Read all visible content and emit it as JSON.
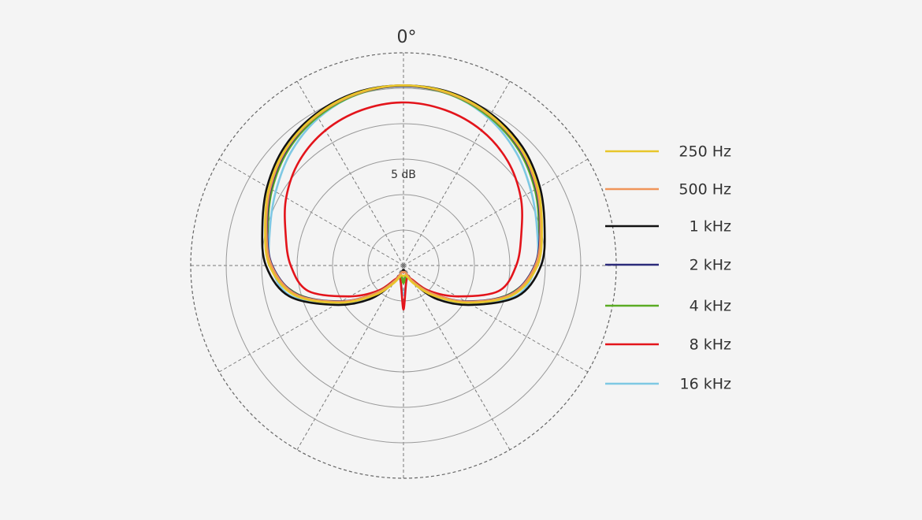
{
  "chart_data": {
    "type": "polar",
    "theta_label": {
      "value": 0,
      "label": "0°"
    },
    "annotation": "5 dB",
    "rlim": [
      -30,
      0
    ],
    "rgrid": [
      -25,
      -20,
      -15,
      -10,
      -5
    ],
    "thetagrid": [
      0,
      30,
      60,
      90,
      120,
      150,
      180,
      210,
      240,
      270,
      300,
      330
    ],
    "theta": [
      0,
      15,
      30,
      45,
      60,
      75,
      90,
      105,
      120,
      135,
      150,
      165,
      180,
      195,
      210,
      225,
      240,
      255,
      270,
      285,
      300,
      315,
      330,
      345
    ],
    "legend": "right",
    "series": [
      {
        "name": "250 Hz",
        "color": "#e8c62a",
        "values": [
          -4.6,
          -4.8,
          -5.5,
          -6.6,
          -8.1,
          -9.8,
          -11.1,
          -14,
          -19.5,
          -24,
          -27,
          -28.5,
          -28.5,
          -28.5,
          -27,
          -24,
          -19.5,
          -14,
          -11.1,
          -9.8,
          -8.1,
          -6.6,
          -5.5,
          -4.8
        ]
      },
      {
        "name": "500 Hz",
        "color": "#f0955a",
        "values": [
          -4.6,
          -4.9,
          -5.6,
          -6.7,
          -8.3,
          -10,
          -11.4,
          -14.3,
          -19.8,
          -24.5,
          -27.5,
          -29,
          -29,
          -29,
          -27.5,
          -24.5,
          -19.8,
          -14.3,
          -11.4,
          -10,
          -8.3,
          -6.7,
          -5.6,
          -4.9
        ]
      },
      {
        "name": "1 kHz",
        "color": "#111111",
        "values": [
          -4.6,
          -4.7,
          -5.3,
          -6.3,
          -7.8,
          -9.4,
          -10.6,
          -13.3,
          -18.9,
          -23.3,
          -27.2,
          -29.1,
          -29.4,
          -29.1,
          -27.2,
          -23.3,
          -18.9,
          -13.3,
          -10.6,
          -9.4,
          -7.8,
          -6.3,
          -5.3,
          -4.7
        ]
      },
      {
        "name": "2 kHz",
        "color": "#2b2a7a",
        "values": [
          -4.7,
          -4.9,
          -5.6,
          -6.8,
          -8.4,
          -10.1,
          -11.5,
          -14.4,
          -19.9,
          -24.5,
          -27.5,
          -29,
          -29,
          -29,
          -27.5,
          -24.5,
          -19.9,
          -14.4,
          -11.5,
          -10.1,
          -8.4,
          -6.8,
          -5.6,
          -4.9
        ]
      },
      {
        "name": "4 kHz",
        "color": "#5aab23",
        "values": [
          -4.7,
          -5,
          -5.8,
          -7,
          -8.6,
          -10.2,
          -11.1,
          -14.5,
          -19.8,
          -24.5,
          -27.5,
          -28.5,
          -27.5,
          -28.5,
          -27.5,
          -24.5,
          -19.8,
          -14.5,
          -11.1,
          -10.2,
          -8.6,
          -7,
          -5.8,
          -5
        ]
      },
      {
        "name": "8 kHz",
        "color": "#e3141b",
        "values": [
          -7,
          -7.3,
          -8,
          -9.2,
          -10.9,
          -12.8,
          -14.1,
          -16.1,
          -21.3,
          -25,
          -27.8,
          -28.2,
          -23.8,
          -28.2,
          -27.8,
          -25,
          -21.3,
          -16.1,
          -14.1,
          -12.8,
          -10.9,
          -9.2,
          -8,
          -7.3
        ]
      },
      {
        "name": "16 kHz",
        "color": "#7ec8e3",
        "values": [
          -4.7,
          -5,
          -6,
          -7.5,
          -9.2,
          -10.5,
          -11.3,
          -13.5,
          -19.4,
          -24,
          -27.5,
          -28,
          -25.8,
          -28,
          -27.5,
          -24,
          -19.4,
          -13.5,
          -11.3,
          -10.5,
          -9.2,
          -7.5,
          -6,
          -5
        ]
      }
    ]
  }
}
